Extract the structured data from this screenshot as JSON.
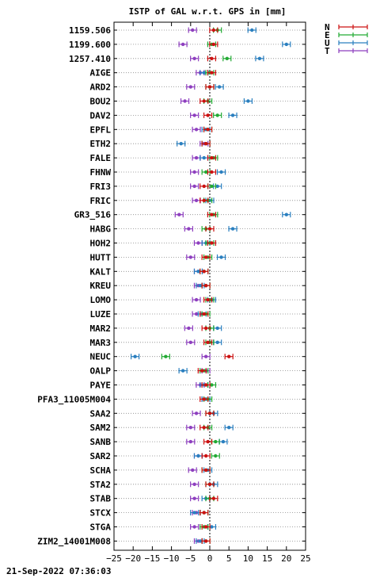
{
  "chart_data": {
    "type": "scatter",
    "title": "ISTP of GAL w.r.t. GPS in [mm]",
    "xlim": [
      -25,
      25
    ],
    "xticks": [
      -25,
      -20,
      -15,
      -10,
      -5,
      0,
      5,
      10,
      15,
      20,
      25
    ],
    "grid": "horizontal dotted lines, vertical dotted line at 0",
    "legend_placement": "top-right outside plot",
    "series": [
      {
        "name": "N",
        "color": "#cc1111"
      },
      {
        "name": "E",
        "color": "#22aa33"
      },
      {
        "name": "U",
        "color": "#2a7fbf"
      },
      {
        "name": "T",
        "color": "#8e3fbf"
      }
    ],
    "categories": [
      "1159.506",
      "1199.600",
      "1257.410",
      "AIGE",
      "ARD2",
      "BOU2",
      "DAV2",
      "EPFL",
      "ETH2",
      "FALE",
      "FHNW",
      "FRI3",
      "FRIC",
      "GR3_516",
      "HABG",
      "HOH2",
      "HUTT",
      "KALT",
      "KREU",
      "LOMO",
      "LUZE",
      "MAR2",
      "MAR3",
      "NEUC",
      "OALP",
      "PAYE",
      "PFA3_11005M004",
      "SAA2",
      "SAM2",
      "SANB",
      "SAR2",
      "SCHA",
      "STA2",
      "STAB",
      "STCX",
      "STGA",
      "ZIM2_14001M008"
    ],
    "values": {
      "N": [
        1,
        1,
        0.5,
        0.5,
        0,
        -1.5,
        -0.5,
        -0.5,
        -1,
        0.5,
        0.5,
        -1.5,
        -1.5,
        0.5,
        0,
        0.5,
        -1,
        -1.5,
        -1,
        -0.5,
        -1.5,
        -1,
        -0.5,
        5,
        -2,
        -1,
        -1.5,
        0,
        -1.5,
        -0.5,
        -1,
        -1,
        0,
        1,
        -1.5,
        -1,
        -1
      ],
      "E": [
        2,
        0.5,
        4.5,
        0,
        0,
        -0.5,
        2,
        -0.5,
        -1,
        1,
        -1,
        0.5,
        -0.5,
        1,
        -1,
        0,
        -0.5,
        -1.5,
        -1,
        0,
        -1,
        0,
        0,
        -11.5,
        -1.5,
        0.5,
        -0.5,
        0,
        -0.5,
        1.5,
        1.5,
        -1,
        0,
        0,
        -1.5,
        -1.5,
        -1
      ],
      "U": [
        11,
        20,
        13,
        -1.5,
        2.5,
        10,
        6,
        -1,
        -7.5,
        -1.5,
        3,
        2,
        0,
        20,
        6,
        -1,
        3,
        -3,
        -2.5,
        0.5,
        -2,
        2,
        2,
        -19.5,
        -7,
        -1.5,
        -1,
        1,
        5,
        3.5,
        -3,
        -0.5,
        1,
        -1,
        -4,
        0.5,
        -2.5
      ],
      "T": [
        -4.5,
        -7,
        -4,
        -2.5,
        -5,
        -6.5,
        -4,
        -3.5,
        -1.5,
        -3.5,
        -4,
        -4,
        -3.5,
        -8,
        -5.5,
        -3,
        -5,
        -3,
        -3,
        -3.5,
        -3.5,
        -5.5,
        -5,
        -1,
        -1,
        -2.5,
        -1,
        -3.5,
        -5,
        -5,
        -3,
        -4.5,
        -4,
        -4,
        -3.5,
        -4,
        -3
      ]
    }
  }
}
